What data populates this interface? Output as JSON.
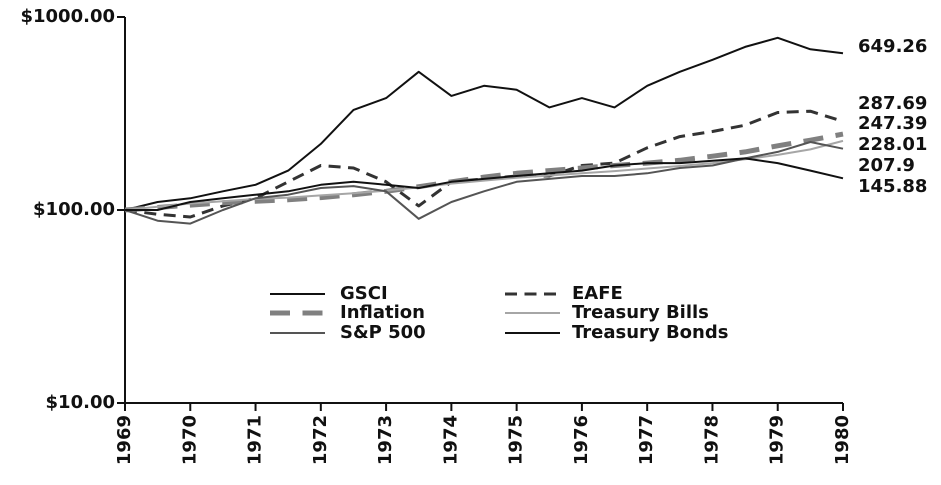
{
  "chart_data": {
    "type": "line",
    "x": [
      1969,
      1969.5,
      1970,
      1970.5,
      1971,
      1971.5,
      1972,
      1972.5,
      1973,
      1973.5,
      1974,
      1974.5,
      1975,
      1975.5,
      1976,
      1976.5,
      1977,
      1977.5,
      1978,
      1978.5,
      1979,
      1979.5,
      1980
    ],
    "series": [
      {
        "name": "GSCI",
        "color": "#111111",
        "width": 2,
        "dash": false,
        "values": [
          100,
          110,
          115,
          125,
          135,
          160,
          220,
          330,
          380,
          520,
          390,
          440,
          420,
          340,
          380,
          340,
          440,
          520,
          600,
          700,
          780,
          680,
          649.26
        ]
      },
      {
        "name": "EAFE",
        "color": "#333333",
        "width": 3,
        "dash": true,
        "values": [
          100,
          95,
          92,
          105,
          115,
          140,
          170,
          165,
          140,
          105,
          140,
          145,
          150,
          150,
          170,
          175,
          210,
          240,
          255,
          275,
          320,
          325,
          287.69
        ]
      },
      {
        "name": "Inflation",
        "color": "#808080",
        "width": 5,
        "dash": true,
        "values": [
          100,
          103,
          106,
          109,
          111,
          113,
          116,
          120,
          125,
          132,
          140,
          148,
          155,
          160,
          165,
          170,
          175,
          181,
          190,
          200,
          215,
          230,
          247.39
        ]
      },
      {
        "name": "Treasury Bills",
        "color": "#a6a6a6",
        "width": 2,
        "dash": false,
        "values": [
          100,
          104,
          108,
          111,
          114,
          116,
          119,
          122,
          126,
          131,
          137,
          142,
          147,
          151,
          155,
          159,
          164,
          169,
          175,
          183,
          193,
          206,
          228.01
        ]
      },
      {
        "name": "S&P 500",
        "color": "#555555",
        "width": 2,
        "dash": false,
        "values": [
          100,
          88,
          85,
          100,
          115,
          120,
          130,
          133,
          125,
          90,
          110,
          125,
          140,
          145,
          150,
          150,
          155,
          165,
          170,
          185,
          200,
          225,
          207.9
        ]
      },
      {
        "name": "Treasury Bonds",
        "color": "#111111",
        "width": 2,
        "dash": false,
        "values": [
          100,
          100,
          110,
          115,
          120,
          125,
          135,
          140,
          135,
          130,
          140,
          145,
          150,
          155,
          160,
          170,
          175,
          175,
          180,
          185,
          175,
          160,
          145.88
        ]
      }
    ],
    "xlim": [
      1969,
      1980
    ],
    "xticks": [
      1969,
      1970,
      1971,
      1972,
      1973,
      1974,
      1975,
      1976,
      1977,
      1978,
      1979,
      1980
    ],
    "ylim": [
      10,
      1000
    ],
    "log_y": true,
    "yticks": [
      {
        "value": 10,
        "label": "$10.00"
      },
      {
        "value": 100,
        "label": "$100.00"
      },
      {
        "value": 1000,
        "label": "$1000.00"
      }
    ]
  }
}
